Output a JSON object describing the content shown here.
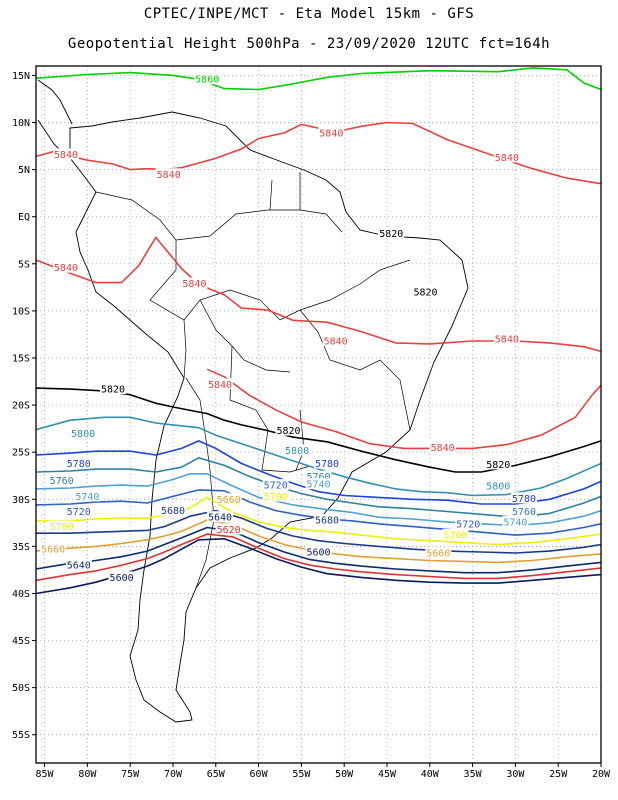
{
  "header": {
    "line1": "CPTEC/INPE/MCT -  Eta Model 15km - GFS",
    "line2": "Geopotential Height 500hPa - 23/09/2020 12UTC fct=164h"
  },
  "colors": {
    "5600": "#0a1a5c",
    "5620": "#e03030",
    "5640": "#0a2a70",
    "5660": "#e0a030",
    "5680": "#1a3a8a",
    "5700": "#f0f000",
    "5720": "#3060c0",
    "5740": "#50a0d0",
    "5760": "#3080a0",
    "5780": "#2040e0",
    "5800": "#3090b0",
    "5820": "#000000",
    "5840": "#e84040",
    "5860": "#00d000"
  },
  "chart_data": {
    "type": "contour-map",
    "variable": "Geopotential Height 500hPa",
    "lon_ticks": [
      "85W",
      "80W",
      "75W",
      "70W",
      "65W",
      "60W",
      "55W",
      "50W",
      "45W",
      "40W",
      "35W",
      "30W",
      "25W",
      "20W"
    ],
    "lat_ticks": [
      "15N",
      "10N",
      "5N",
      "EQ",
      "5S",
      "10S",
      "15S",
      "20S",
      "25S",
      "30S",
      "35S",
      "40S",
      "45S",
      "50S",
      "55S"
    ],
    "xlim": [
      -86,
      -20
    ],
    "ylim": [
      -58,
      16
    ],
    "grid": "dotted",
    "contours": [
      {
        "level": 5860,
        "lon": [
          -86,
          -80,
          -75,
          -70,
          -67,
          -64,
          -60,
          -56,
          -52,
          -48,
          -40,
          -32,
          -28,
          -24,
          -22,
          -20
        ],
        "lat": [
          14.7,
          15.1,
          15.3,
          15.0,
          14.6,
          13.6,
          13.5,
          14.1,
          14.8,
          15.2,
          15.5,
          15.4,
          15.8,
          15.6,
          14.2,
          13.5
        ]
      },
      {
        "level": 5840,
        "lon": [
          -86,
          -84,
          -80,
          -77,
          -75,
          -73,
          -71,
          -69,
          -67,
          -65,
          -62,
          -60,
          -57,
          -55,
          -51,
          -48,
          -45,
          -42,
          -38,
          -32,
          -28,
          -24,
          -20
        ],
        "lat": [
          6.4,
          6.9,
          6.0,
          5.6,
          5.0,
          5.1,
          5.0,
          5.2,
          5.7,
          6.2,
          7.2,
          8.3,
          8.9,
          9.8,
          9.0,
          9.6,
          10.0,
          9.9,
          8.2,
          6.3,
          5.1,
          4.1,
          3.5
        ]
      },
      {
        "level": 5840,
        "lon": [
          -86,
          -82,
          -79,
          -76,
          -74,
          -72,
          -69,
          -67,
          -64,
          -62,
          -59,
          -56,
          -52,
          -48,
          -44,
          -40,
          -35,
          -30,
          -26,
          -22,
          -20
        ],
        "lat": [
          -4.6,
          -6.0,
          -7.0,
          -7.0,
          -5.2,
          -2.2,
          -5.5,
          -7.2,
          -8.3,
          -9.7,
          -9.9,
          -11.0,
          -11.2,
          -12.2,
          -13.4,
          -13.5,
          -13.2,
          -13.2,
          -13.4,
          -13.8,
          -14.3
        ]
      },
      {
        "level": 5840,
        "lon": [
          -66,
          -64,
          -61,
          -58,
          -55,
          -51,
          -47,
          -43,
          -39,
          -35,
          -31,
          -27,
          -23,
          -21,
          -20
        ],
        "lat": [
          -16.2,
          -17.0,
          -19.0,
          -20.5,
          -21.8,
          -22.8,
          -24.1,
          -24.6,
          -24.6,
          -24.6,
          -24.2,
          -23.2,
          -21.3,
          -18.9,
          -17.9
        ]
      },
      {
        "level": 5820,
        "lon": [
          -86,
          -82,
          -78,
          -75,
          -72,
          -70,
          -66,
          -64,
          -62,
          -59,
          -56,
          -52,
          -48,
          -44,
          -40,
          -37,
          -34,
          -30,
          -26,
          -22,
          -20
        ],
        "lat": [
          -18.2,
          -18.3,
          -18.5,
          -18.9,
          -19.8,
          -20.2,
          -20.9,
          -21.6,
          -22.1,
          -22.7,
          -23.4,
          -23.9,
          -24.9,
          -25.8,
          -26.6,
          -27.1,
          -27.1,
          -26.4,
          -25.5,
          -24.4,
          -23.8
        ]
      },
      {
        "level": 5800,
        "lon": [
          -86,
          -82,
          -78,
          -75,
          -72,
          -70,
          -67,
          -65,
          -62,
          -59,
          -56,
          -53,
          -50,
          -47,
          -44,
          -41,
          -38,
          -35,
          -31,
          -27,
          -24,
          -21,
          -20
        ],
        "lat": [
          -22.6,
          -21.6,
          -21.3,
          -21.3,
          -21.9,
          -22.1,
          -22.4,
          -23.2,
          -24.1,
          -25.0,
          -25.9,
          -26.8,
          -27.6,
          -28.3,
          -28.9,
          -29.2,
          -29.3,
          -29.6,
          -29.5,
          -28.8,
          -27.8,
          -26.6,
          -26.2
        ]
      },
      {
        "level": 5780,
        "lon": [
          -86,
          -82,
          -79,
          -75,
          -72,
          -69,
          -67,
          -65,
          -62,
          -59,
          -56,
          -53,
          -50,
          -46,
          -42,
          -38,
          -34,
          -30,
          -26,
          -22,
          -20
        ],
        "lat": [
          -25.3,
          -25.1,
          -24.9,
          -24.9,
          -25.3,
          -24.6,
          -23.8,
          -24.6,
          -26.2,
          -27.3,
          -28.3,
          -29.2,
          -29.6,
          -29.8,
          -30.0,
          -30.1,
          -30.5,
          -30.5,
          -30.0,
          -28.9,
          -28.1
        ]
      },
      {
        "level": 5760,
        "lon": [
          -86,
          -82,
          -79,
          -75,
          -72,
          -69,
          -67,
          -64,
          -61,
          -58,
          -55,
          -52,
          -49,
          -46,
          -42,
          -38,
          -34,
          -30,
          -26,
          -22,
          -20
        ],
        "lat": [
          -27.1,
          -27.0,
          -26.8,
          -26.8,
          -27.1,
          -26.6,
          -25.6,
          -26.4,
          -27.6,
          -28.6,
          -29.4,
          -30.0,
          -30.4,
          -30.8,
          -31.0,
          -31.3,
          -31.6,
          -31.9,
          -31.5,
          -30.4,
          -29.7
        ]
      },
      {
        "level": 5740,
        "lon": [
          -86,
          -82,
          -79,
          -76,
          -73,
          -70,
          -68,
          -66,
          -63,
          -60,
          -56,
          -52,
          -49,
          -46,
          -42,
          -38,
          -34,
          -30,
          -26,
          -22,
          -20
        ],
        "lat": [
          -28.9,
          -28.8,
          -28.6,
          -28.5,
          -28.6,
          -27.9,
          -27.3,
          -27.3,
          -28.6,
          -29.8,
          -30.6,
          -31.1,
          -31.4,
          -31.9,
          -32.1,
          -32.4,
          -32.6,
          -32.8,
          -32.5,
          -31.8,
          -31.2
        ]
      },
      {
        "level": 5720,
        "lon": [
          -86,
          -82,
          -79,
          -76,
          -73,
          -70,
          -67,
          -64,
          -61,
          -58,
          -55,
          -52,
          -49,
          -46,
          -42,
          -38,
          -34,
          -30,
          -26,
          -22,
          -20
        ],
        "lat": [
          -30.6,
          -30.5,
          -30.3,
          -30.2,
          -30.4,
          -29.7,
          -29.0,
          -29.1,
          -30.3,
          -31.2,
          -31.7,
          -32.1,
          -32.3,
          -32.6,
          -32.9,
          -33.2,
          -33.5,
          -33.8,
          -33.6,
          -33.0,
          -32.6
        ]
      },
      {
        "level": 5700,
        "lon": [
          -86,
          -82,
          -79,
          -76,
          -73,
          -70,
          -68,
          -66,
          -63,
          -60,
          -57,
          -54,
          -51,
          -48,
          -44,
          -40,
          -36,
          -32,
          -28,
          -24,
          -20
        ],
        "lat": [
          -32.3,
          -32.3,
          -32.1,
          -32.0,
          -32.0,
          -31.5,
          -30.9,
          -29.8,
          -31.4,
          -32.4,
          -33.0,
          -33.3,
          -33.5,
          -33.8,
          -34.2,
          -34.4,
          -34.6,
          -34.8,
          -34.6,
          -34.2,
          -33.7
        ]
      },
      {
        "level": 5680,
        "lon": [
          -86,
          -82,
          -79,
          -76,
          -73,
          -71,
          -68,
          -65,
          -62,
          -59,
          -56,
          -53,
          -50,
          -46,
          -42,
          -38,
          -34,
          -30,
          -26,
          -22,
          -20
        ],
        "lat": [
          -33.6,
          -33.6,
          -33.5,
          -33.4,
          -33.3,
          -32.9,
          -31.8,
          -31.2,
          -32.0,
          -33.1,
          -33.9,
          -34.4,
          -34.7,
          -35.0,
          -35.3,
          -35.5,
          -35.6,
          -35.7,
          -35.5,
          -35.1,
          -34.8
        ]
      },
      {
        "level": 5660,
        "lon": [
          -86,
          -82,
          -79,
          -76,
          -73,
          -71,
          -69,
          -66,
          -63,
          -60,
          -57,
          -54,
          -51,
          -48,
          -44,
          -40,
          -36,
          -32,
          -28,
          -24,
          -20
        ],
        "lat": [
          -35.5,
          -35.2,
          -35.0,
          -34.7,
          -34.3,
          -33.9,
          -33.4,
          -32.2,
          -32.7,
          -33.9,
          -34.8,
          -35.4,
          -35.8,
          -36.1,
          -36.3,
          -36.5,
          -36.6,
          -36.7,
          -36.5,
          -36.1,
          -35.8
        ]
      },
      {
        "level": 5640,
        "lon": [
          -86,
          -82,
          -79,
          -76,
          -73,
          -71,
          -69,
          -66,
          -63,
          -60,
          -57,
          -54,
          -51,
          -48,
          -44,
          -40,
          -36,
          -32,
          -28,
          -24,
          -20
        ],
        "lat": [
          -37.4,
          -36.8,
          -36.5,
          -36.1,
          -35.5,
          -34.8,
          -34.1,
          -33.0,
          -33.4,
          -34.6,
          -35.6,
          -36.4,
          -36.8,
          -37.1,
          -37.4,
          -37.6,
          -37.8,
          -37.8,
          -37.5,
          -37.1,
          -36.7
        ]
      },
      {
        "level": 5620,
        "lon": [
          -86,
          -82,
          -79,
          -76,
          -73,
          -71,
          -69,
          -66,
          -63,
          -60,
          -57,
          -54,
          -51,
          -48,
          -44,
          -40,
          -36,
          -32,
          -28,
          -24,
          -20
        ],
        "lat": [
          -38.6,
          -38.0,
          -37.6,
          -37.0,
          -36.3,
          -35.6,
          -34.8,
          -33.7,
          -34.0,
          -35.2,
          -36.3,
          -37.0,
          -37.4,
          -37.7,
          -38.0,
          -38.2,
          -38.4,
          -38.4,
          -38.1,
          -37.7,
          -37.3
        ]
      },
      {
        "level": 5600,
        "lon": [
          -86,
          -82,
          -79,
          -76,
          -73,
          -71,
          -69,
          -67,
          -64,
          -61,
          -58,
          -55,
          -52,
          -48,
          -44,
          -40,
          -36,
          -32,
          -28,
          -24,
          -20
        ],
        "lat": [
          -40.0,
          -39.4,
          -38.8,
          -38.0,
          -37.1,
          -36.3,
          -35.3,
          -34.3,
          -34.2,
          -35.2,
          -36.3,
          -37.2,
          -37.9,
          -38.3,
          -38.6,
          -38.8,
          -38.9,
          -38.9,
          -38.6,
          -38.3,
          -38.0
        ]
      }
    ],
    "labels": [
      {
        "text": "5860",
        "level": 5860,
        "lon": -66.0,
        "lat": 14.6
      },
      {
        "text": "5840",
        "level": 5840,
        "lon": -82.5,
        "lat": 6.6
      },
      {
        "text": "5840",
        "level": 5840,
        "lon": -70.5,
        "lat": 4.5
      },
      {
        "text": "5840",
        "level": 5840,
        "lon": -51.5,
        "lat": 8.9
      },
      {
        "text": "5840",
        "level": 5840,
        "lon": -31.0,
        "lat": 6.3
      },
      {
        "text": "5840",
        "level": 5840,
        "lon": -82.5,
        "lat": -5.4
      },
      {
        "text": "5840",
        "level": 5840,
        "lon": -67.5,
        "lat": -7.1
      },
      {
        "text": "5840",
        "level": 5840,
        "lon": -51.0,
        "lat": -13.2
      },
      {
        "text": "5840",
        "level": 5840,
        "lon": -31.0,
        "lat": -13.0
      },
      {
        "text": "5840",
        "level": 5840,
        "lon": -64.5,
        "lat": -17.8
      },
      {
        "text": "5840",
        "level": 5840,
        "lon": -38.5,
        "lat": -24.5
      },
      {
        "text": "5820",
        "level": 5820,
        "lon": -44.5,
        "lat": -1.8
      },
      {
        "text": "5820",
        "level": 5820,
        "lon": -40.5,
        "lat": -8.0
      },
      {
        "text": "5820",
        "level": 5820,
        "lon": -77.0,
        "lat": -18.3
      },
      {
        "text": "5820",
        "level": 5820,
        "lon": -56.5,
        "lat": -22.7
      },
      {
        "text": "5820",
        "level": 5820,
        "lon": -32.0,
        "lat": -26.3
      },
      {
        "text": "5800",
        "level": 5800,
        "lon": -80.5,
        "lat": -23.0
      },
      {
        "text": "5800",
        "level": 5800,
        "lon": -55.5,
        "lat": -24.8
      },
      {
        "text": "5800",
        "level": 5800,
        "lon": -32.0,
        "lat": -28.6
      },
      {
        "text": "5780",
        "level": 5780,
        "lon": -81.0,
        "lat": -26.2
      },
      {
        "text": "5780",
        "level": 5780,
        "lon": -52.0,
        "lat": -26.2
      },
      {
        "text": "5780",
        "level": 5780,
        "lon": -29.0,
        "lat": -29.9
      },
      {
        "text": "5760",
        "level": 5760,
        "lon": -83.0,
        "lat": -28.0
      },
      {
        "text": "5760",
        "level": 5760,
        "lon": -53.0,
        "lat": -27.6
      },
      {
        "text": "5760",
        "level": 5760,
        "lon": -29.0,
        "lat": -31.3
      },
      {
        "text": "5740",
        "level": 5740,
        "lon": -80.0,
        "lat": -29.7
      },
      {
        "text": "5740",
        "level": 5740,
        "lon": -53.0,
        "lat": -28.4
      },
      {
        "text": "5740",
        "level": 5740,
        "lon": -30.0,
        "lat": -32.4
      },
      {
        "text": "5720",
        "level": 5720,
        "lon": -81.0,
        "lat": -31.3
      },
      {
        "text": "5720",
        "level": 5720,
        "lon": -58.0,
        "lat": -28.5
      },
      {
        "text": "5720",
        "level": 5720,
        "lon": -35.5,
        "lat": -32.6
      },
      {
        "text": "5700",
        "level": 5700,
        "lon": -83.0,
        "lat": -32.9
      },
      {
        "text": "5700",
        "level": 5700,
        "lon": -58.0,
        "lat": -29.7
      },
      {
        "text": "5700",
        "level": 5700,
        "lon": -37.0,
        "lat": -33.8
      },
      {
        "text": "5680",
        "level": 5680,
        "lon": -70.0,
        "lat": -31.2
      },
      {
        "text": "5680",
        "level": 5680,
        "lon": -52.0,
        "lat": -32.2
      },
      {
        "text": "5660",
        "level": 5660,
        "lon": -84.0,
        "lat": -35.3
      },
      {
        "text": "5660",
        "level": 5660,
        "lon": -63.5,
        "lat": -30.0
      },
      {
        "text": "5660",
        "level": 5660,
        "lon": -39.0,
        "lat": -35.7
      },
      {
        "text": "5640",
        "level": 5640,
        "lon": -81.0,
        "lat": -37.0
      },
      {
        "text": "5640",
        "level": 5640,
        "lon": -64.5,
        "lat": -31.9
      },
      {
        "text": "5620",
        "level": 5620,
        "lon": -63.5,
        "lat": -33.2
      },
      {
        "text": "5600",
        "level": 5600,
        "lon": -76.0,
        "lat": -38.3
      },
      {
        "text": "5600",
        "level": 5600,
        "lon": -53.0,
        "lat": -35.6
      }
    ]
  }
}
